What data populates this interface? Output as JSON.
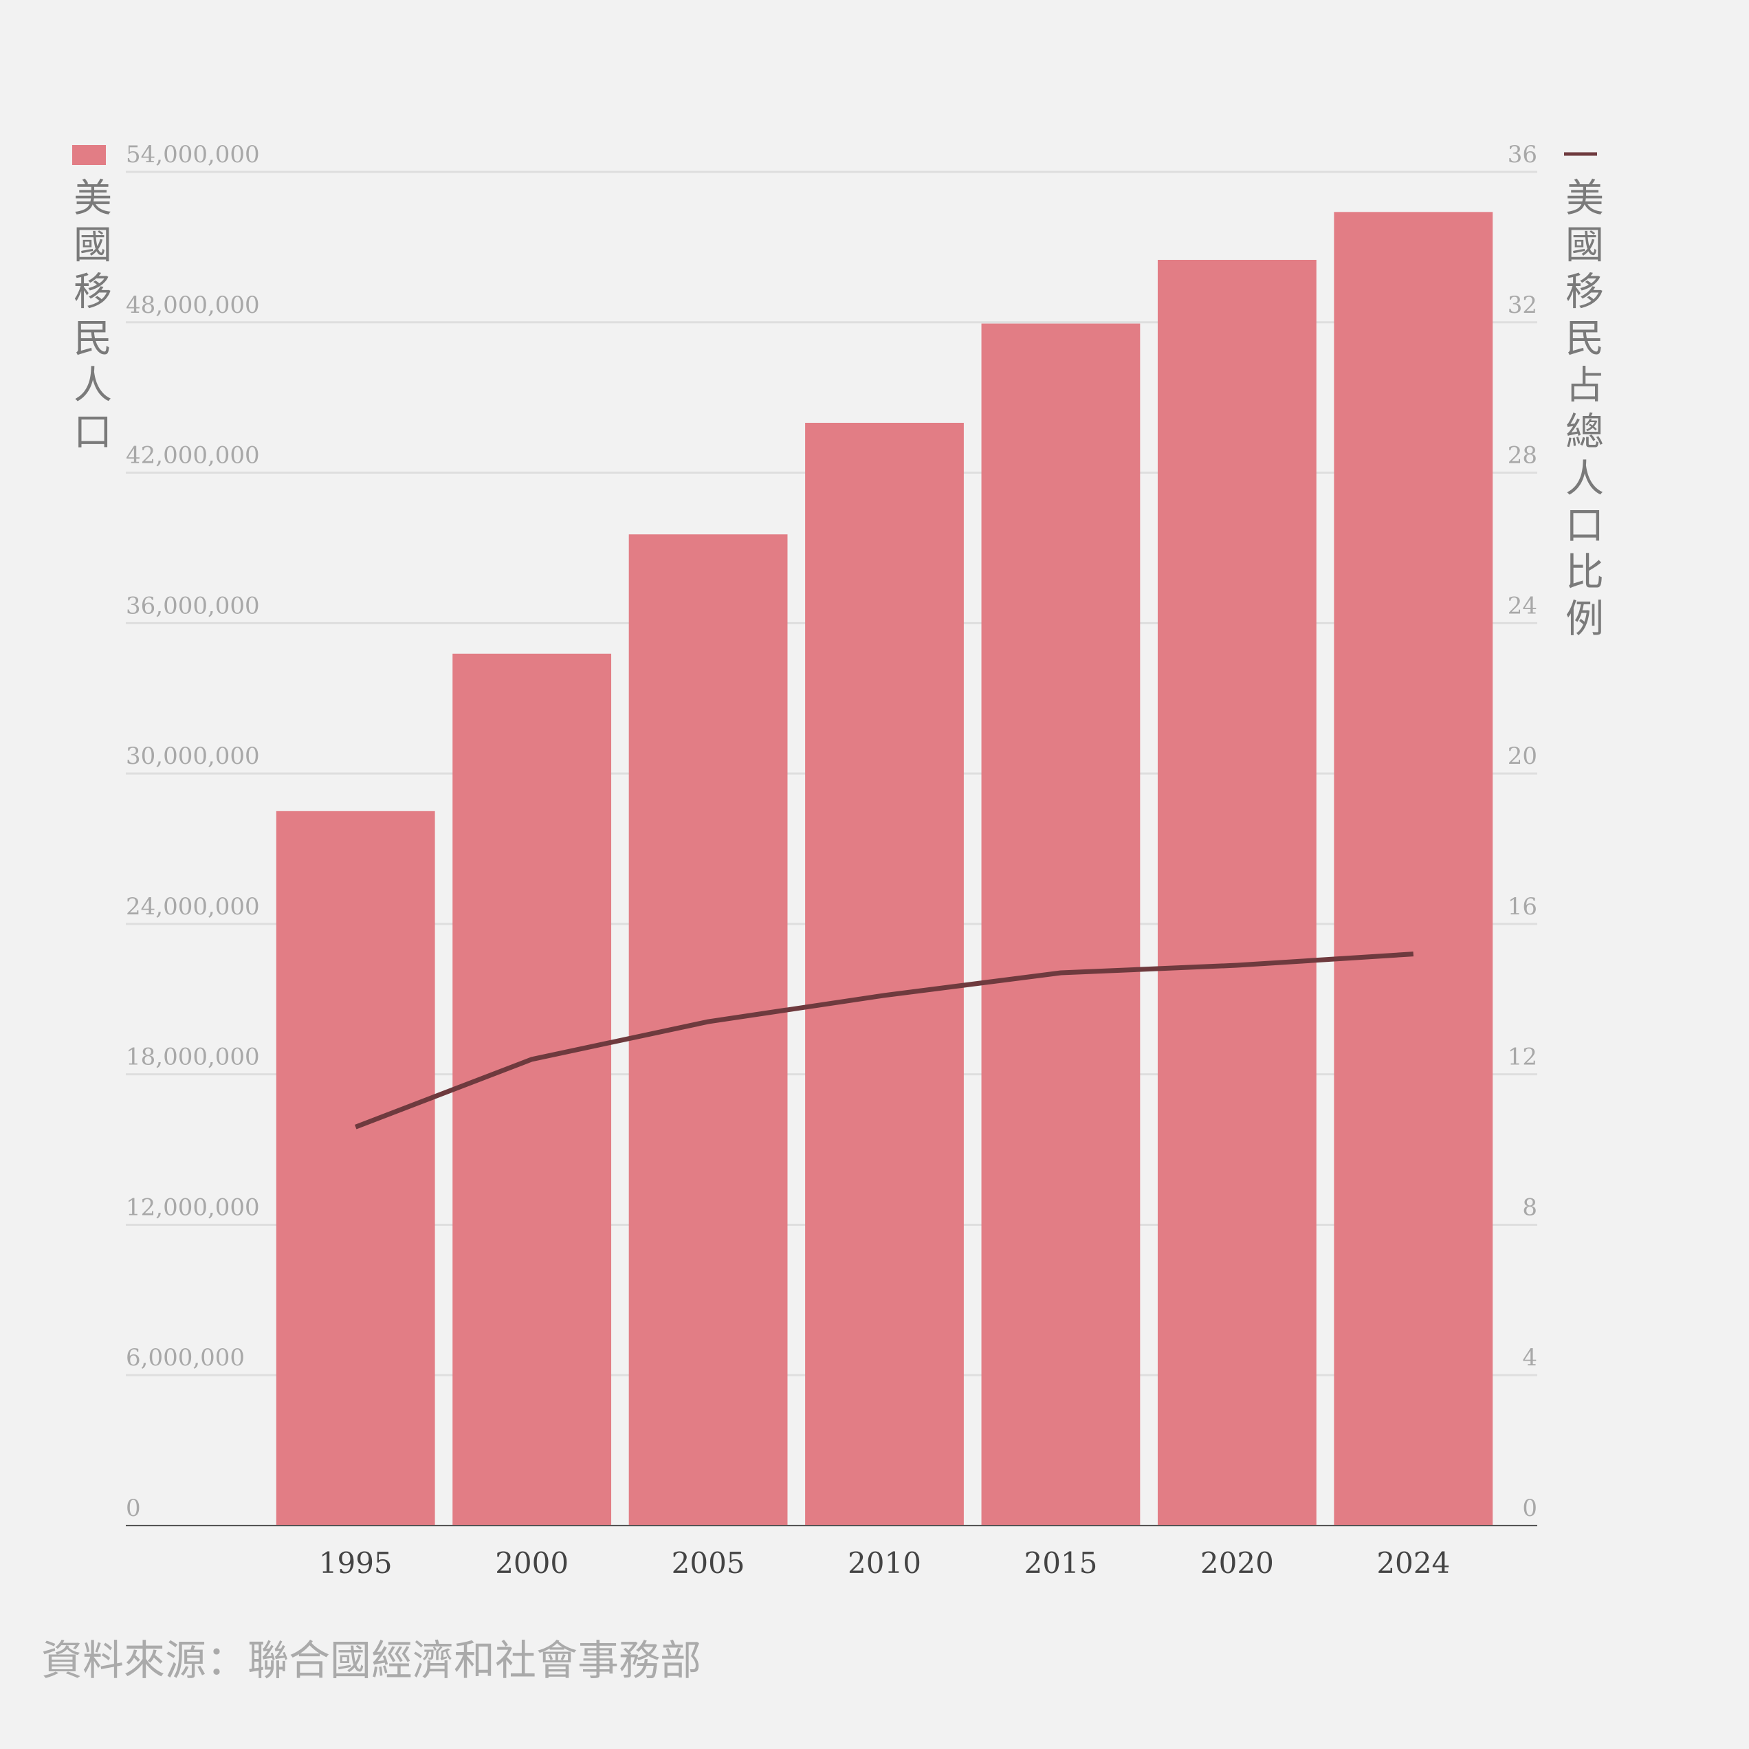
{
  "chart_data": {
    "type": "bar_line",
    "categories": [
      "1995",
      "2000",
      "2005",
      "2010",
      "2015",
      "2020",
      "2024"
    ],
    "series": [
      {
        "name": "美國移民人口",
        "type": "bar",
        "color": "#e27d85",
        "values": [
          28500000,
          34780000,
          39540000,
          43990000,
          47950000,
          50490000,
          52400000
        ]
      },
      {
        "name": "美國移民占總人口比例",
        "type": "line",
        "axis": "y2",
        "color": "#6e3a3e",
        "values": [
          10.6,
          12.4,
          13.4,
          14.1,
          14.7,
          14.9,
          15.2
        ]
      }
    ],
    "ylim": [
      0,
      54000000
    ],
    "yticks": [
      {
        "value": 0,
        "label": "0"
      },
      {
        "value": 6000000,
        "label": "6,000,000"
      },
      {
        "value": 12000000,
        "label": "12,000,000"
      },
      {
        "value": 18000000,
        "label": "18,000,000"
      },
      {
        "value": 24000000,
        "label": "24,000,000"
      },
      {
        "value": 30000000,
        "label": "30,000,000"
      },
      {
        "value": 36000000,
        "label": "36,000,000"
      },
      {
        "value": 42000000,
        "label": "42,000,000"
      },
      {
        "value": 48000000,
        "label": "48,000,000"
      },
      {
        "value": 54000000,
        "label": "54,000,000"
      }
    ],
    "y2lim": [
      0,
      36
    ],
    "y2ticks": [
      0,
      4,
      8,
      12,
      16,
      20,
      24,
      28,
      32,
      36
    ],
    "grid": true,
    "source": "資料來源：聯合國經濟和社會事務部"
  }
}
